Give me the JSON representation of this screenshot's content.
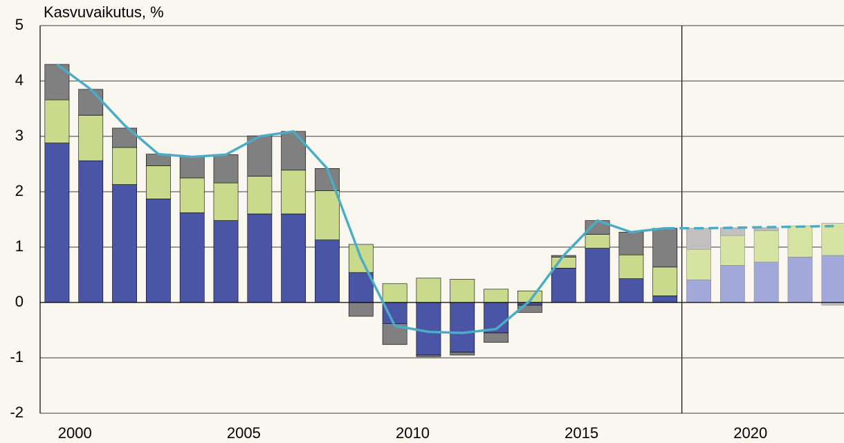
{
  "chart_data": {
    "type": "bar",
    "stacked": true,
    "title": "Kasvuvaikutus, %",
    "x": [
      2000,
      2001,
      2002,
      2003,
      2004,
      2005,
      2006,
      2007,
      2008,
      2009,
      2010,
      2011,
      2012,
      2013,
      2014,
      2015,
      2016,
      2017,
      2018,
      2019,
      2020,
      2021,
      2022,
      2023
    ],
    "xlim": [
      1999.5,
      2023.3
    ],
    "xticks": [
      2000,
      2005,
      2010,
      2015,
      2020
    ],
    "ylim": [
      -2,
      5
    ],
    "yticks": [
      -2,
      -1,
      0,
      1,
      2,
      3,
      4,
      5
    ],
    "grid": true,
    "forecast_from": 2018.5,
    "series": [
      {
        "color": "#4a55a5",
        "forecast_color": "#a3a8da",
        "values": [
          2.88,
          2.56,
          2.13,
          1.87,
          1.62,
          1.48,
          1.6,
          1.6,
          1.13,
          0.54,
          -0.38,
          -0.95,
          -0.9,
          -0.55,
          -0.05,
          0.62,
          0.98,
          0.43,
          0.12,
          0.41,
          0.67,
          0.73,
          0.82,
          0.85
        ]
      },
      {
        "color": "#c9da8c",
        "forecast_color": "#d6e3a2",
        "values": [
          0.78,
          0.82,
          0.67,
          0.6,
          0.63,
          0.68,
          0.68,
          0.79,
          0.89,
          0.51,
          0.34,
          0.44,
          0.42,
          0.24,
          0.21,
          0.2,
          0.25,
          0.43,
          0.52,
          0.55,
          0.54,
          0.57,
          0.56,
          0.58
        ]
      },
      {
        "color": "#808080",
        "forecast_color": "#c2c0c0",
        "values": [
          0.64,
          0.47,
          0.35,
          0.21,
          0.38,
          0.51,
          0.73,
          0.7,
          0.4,
          -0.25,
          -0.38,
          -0.03,
          -0.05,
          -0.17,
          -0.13,
          0.03,
          0.25,
          0.41,
          0.7,
          0.38,
          0.14,
          0.05,
          0.0,
          -0.05
        ]
      },
      {
        "type": "line",
        "color": "#4bacc6",
        "values": [
          4.3,
          3.85,
          3.2,
          2.68,
          2.63,
          2.67,
          3.0,
          3.09,
          2.42,
          0.8,
          -0.42,
          -0.53,
          -0.55,
          -0.48,
          0.03,
          0.85,
          1.48,
          1.27,
          1.34,
          1.34,
          1.35,
          1.36,
          1.37,
          1.38
        ]
      }
    ]
  }
}
